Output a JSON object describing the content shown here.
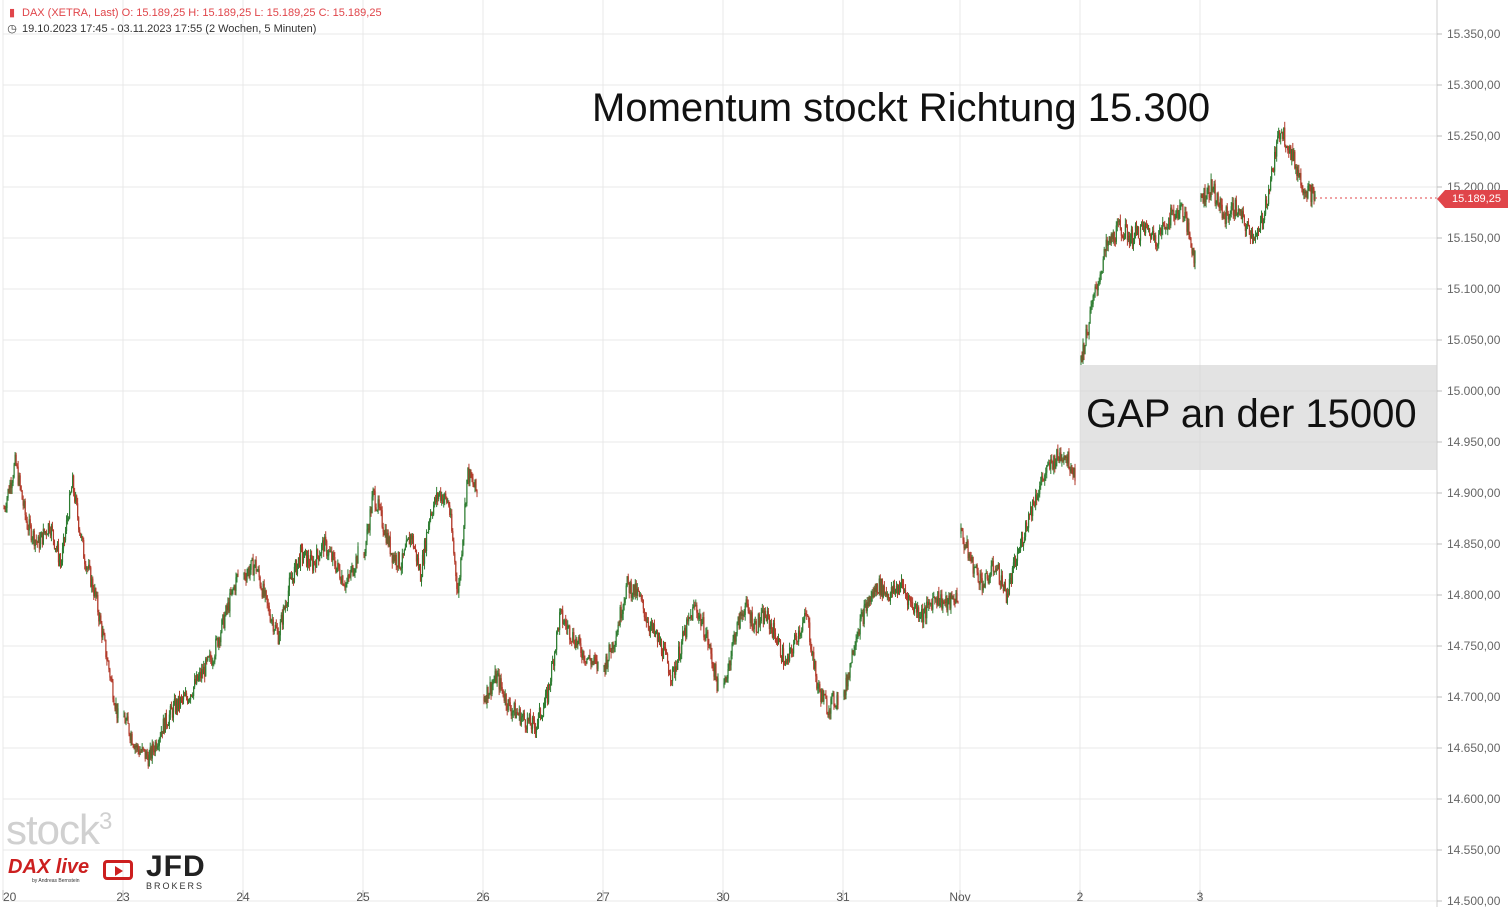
{
  "header": {
    "line1_icon": "candlestick-icon",
    "line1": "DAX (XETRA, Last)  O: 15.189,25  H: 15.189,25  L: 15.189,25  C: 15.189,25",
    "line2_icon": "clock-icon",
    "line2": "19.10.2023 17:45 - 03.11.2023 17:55   (2 Wochen, 5 Minuten)"
  },
  "annotations": {
    "momentum": "Momentum stockt Richtung 15.300",
    "gap": "GAP an der 15000"
  },
  "last_price_label": "15.189,25",
  "logos": {
    "stock3": "stock",
    "stock3_sup": "3",
    "dax_live": "DAX live",
    "dax_live_sub": "by Andreas Bernstein",
    "jfd": "JFD",
    "brokers": "BROKERS"
  },
  "colors": {
    "up": "#2e7d32",
    "down": "#b23a2a",
    "accent": "#e0454a",
    "grid": "#e9e9e9"
  },
  "chart_data": {
    "type": "candlestick",
    "symbol": "DAX (XETRA, Last)",
    "interval": "5 Minuten",
    "period": "19.10.2023 17:45 - 03.11.2023 17:55",
    "ylim": [
      14500,
      15360
    ],
    "y_ticks": [
      "15.350,00",
      "15.300,00",
      "15.250,00",
      "15.200,00",
      "15.150,00",
      "15.100,00",
      "15.050,00",
      "15.000,00",
      "14.950,00",
      "14.900,00",
      "14.850,00",
      "14.800,00",
      "14.750,00",
      "14.700,00",
      "14.650,00",
      "14.600,00",
      "14.550,00",
      "14.500,00"
    ],
    "y_tick_values": [
      15350,
      15300,
      15250,
      15200,
      15150,
      15100,
      15050,
      15000,
      14950,
      14900,
      14850,
      14800,
      14750,
      14700,
      14650,
      14600,
      14550,
      14500
    ],
    "x_ticks": [
      "20",
      "23",
      "24",
      "25",
      "26",
      "27",
      "30",
      "31",
      "Nov",
      "2",
      "3"
    ],
    "sessions": [
      {
        "label": "20",
        "path": [
          14885,
          14930,
          14870,
          14850,
          14870,
          14830,
          14910,
          14840,
          14800,
          14740,
          14680
        ]
      },
      {
        "label": "23",
        "path": [
          14680,
          14650,
          14640,
          14670,
          14690,
          14700,
          14720,
          14740,
          14780,
          14820
        ]
      },
      {
        "label": "24",
        "path": [
          14820,
          14830,
          14790,
          14760,
          14810,
          14840,
          14830,
          14850,
          14830,
          14810,
          14840
        ]
      },
      {
        "label": "25",
        "path": [
          14840,
          14900,
          14870,
          14840,
          14830,
          14860,
          14820,
          14880,
          14900,
          14890,
          14800,
          14920,
          14900
        ]
      },
      {
        "label": "26",
        "path": [
          14700,
          14720,
          14690,
          14680,
          14670,
          14700,
          14780,
          14760,
          14740,
          14730
        ]
      },
      {
        "label": "27",
        "path": [
          14730,
          14760,
          14810,
          14800,
          14770,
          14750,
          14720,
          14760,
          14790,
          14760,
          14710
        ]
      },
      {
        "label": "30",
        "path": [
          14710,
          14760,
          14790,
          14770,
          14780,
          14760,
          14730,
          14760,
          14780,
          14710,
          14690,
          14700
        ]
      },
      {
        "label": "31",
        "path": [
          14700,
          14760,
          14790,
          14810,
          14800,
          14810,
          14790,
          14780,
          14800,
          14790,
          14800
        ]
      },
      {
        "label": "Nov",
        "path": [
          14860,
          14830,
          14810,
          14830,
          14800,
          14840,
          14880,
          14910,
          14930,
          14940,
          14920
        ]
      },
      {
        "label": "2",
        "path": [
          15030,
          15090,
          15140,
          15160,
          15150,
          15160,
          15150,
          15170,
          15180,
          15130
        ]
      },
      {
        "label": "3",
        "path": [
          15190,
          15200,
          15170,
          15180,
          15160,
          15150,
          15200,
          15260,
          15230,
          15200,
          15190
        ]
      }
    ],
    "last": 15189.25,
    "O": "15.189,25",
    "H": "15.189,25",
    "L": "15.189,25",
    "C": "15.189,25",
    "annotations": [
      "Momentum stockt Richtung 15.300",
      "GAP an der 15000"
    ],
    "gap_zone": [
      14920,
      15025
    ]
  }
}
